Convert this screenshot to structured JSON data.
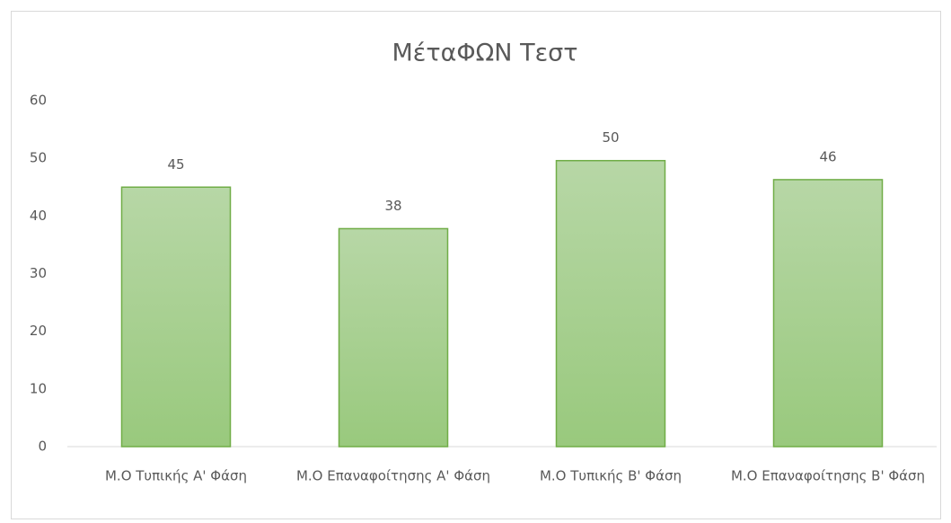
{
  "chart_data": {
    "type": "bar",
    "title": "ΜέταΦΩΝ Τεστ",
    "categories": [
      "Μ.Ο Τυπικής Α' Φάση",
      "Μ.Ο Επαναφοίτησης Α' Φάση",
      "Μ.Ο Τυπικής Β' Φάση",
      "Μ.Ο Επαναφοίτησης Β' Φάση"
    ],
    "values": [
      45,
      37.8,
      49.6,
      46.3
    ],
    "value_labels": [
      "45",
      "38",
      "50",
      "46"
    ],
    "color": "#9fcd85",
    "ylim": [
      0,
      60
    ],
    "yticks": [
      0,
      10,
      20,
      30,
      40,
      50,
      60
    ],
    "grid": false
  }
}
